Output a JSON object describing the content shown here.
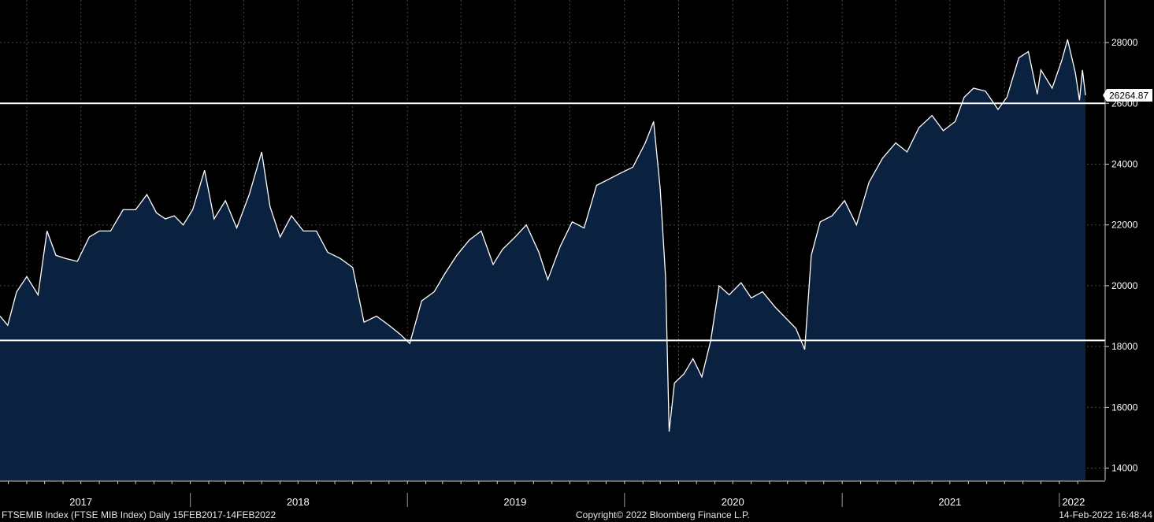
{
  "footer": {
    "left": "FTSEMIB Index (FTSE MIB Index)  Daily 15FEB2017-14FEB2022",
    "center": "Copyright© 2022 Bloomberg Finance L.P.",
    "right": "14-Feb-2022 16:48:44"
  },
  "colors": {
    "background": "#000000",
    "area_fill": "#0b2140",
    "line": "#ffffff",
    "grid": "#4a4a4a",
    "label_box": "#ffffff"
  },
  "chart_data": {
    "type": "area",
    "grid": true,
    "ylim": [
      13600,
      29400
    ],
    "y_ticks": [
      14000,
      16000,
      18000,
      20000,
      22000,
      24000,
      26000,
      28000
    ],
    "x_range": [
      "2017-02-15",
      "2022-02-14"
    ],
    "x_year_labels": [
      {
        "label": "2017",
        "mid": "2017-07-01"
      },
      {
        "label": "2018",
        "mid": "2018-07-01"
      },
      {
        "label": "2019",
        "mid": "2019-07-01"
      },
      {
        "label": "2020",
        "mid": "2020-07-01"
      },
      {
        "label": "2021",
        "mid": "2021-07-01"
      },
      {
        "label": "2022",
        "mid": "2022-01-25"
      }
    ],
    "x_year_boundaries": [
      "2018-01-01",
      "2019-01-01",
      "2020-01-01",
      "2021-01-01",
      "2022-01-01"
    ],
    "horizontal_lines": [
      26000,
      18200
    ],
    "last_value_label": "26264.87",
    "series": [
      {
        "dates": [
          "2017-02-15",
          "2017-02-28",
          "2017-03-15",
          "2017-04-01",
          "2017-04-20",
          "2017-05-05",
          "2017-05-20",
          "2017-06-05",
          "2017-06-25",
          "2017-07-15",
          "2017-08-01",
          "2017-08-20",
          "2017-09-10",
          "2017-10-01",
          "2017-10-20",
          "2017-11-05",
          "2017-11-20",
          "2017-12-05",
          "2017-12-20",
          "2018-01-05",
          "2018-01-25",
          "2018-02-10",
          "2018-03-01",
          "2018-03-20",
          "2018-04-10",
          "2018-05-01",
          "2018-05-15",
          "2018-06-01",
          "2018-06-20",
          "2018-07-10",
          "2018-08-01",
          "2018-08-20",
          "2018-09-10",
          "2018-10-01",
          "2018-10-20",
          "2018-11-10",
          "2018-12-01",
          "2018-12-20",
          "2019-01-05",
          "2019-01-25",
          "2019-02-15",
          "2019-03-05",
          "2019-03-25",
          "2019-04-15",
          "2019-05-05",
          "2019-05-25",
          "2019-06-10",
          "2019-07-01",
          "2019-07-20",
          "2019-08-10",
          "2019-08-25",
          "2019-09-15",
          "2019-10-05",
          "2019-10-25",
          "2019-11-15",
          "2019-12-05",
          "2019-12-25",
          "2020-01-15",
          "2020-02-05",
          "2020-02-19",
          "2020-03-01",
          "2020-03-10",
          "2020-03-16",
          "2020-03-25",
          "2020-04-10",
          "2020-04-25",
          "2020-05-10",
          "2020-05-25",
          "2020-06-08",
          "2020-06-25",
          "2020-07-15",
          "2020-08-01",
          "2020-08-20",
          "2020-09-10",
          "2020-09-30",
          "2020-10-15",
          "2020-10-30",
          "2020-11-10",
          "2020-11-25",
          "2020-12-15",
          "2021-01-05",
          "2021-01-25",
          "2021-02-15",
          "2021-03-10",
          "2021-04-01",
          "2021-04-20",
          "2021-05-10",
          "2021-06-01",
          "2021-06-20",
          "2021-07-10",
          "2021-07-25",
          "2021-08-10",
          "2021-08-30",
          "2021-09-20",
          "2021-10-05",
          "2021-10-25",
          "2021-11-10",
          "2021-11-25",
          "2021-12-01",
          "2021-12-20",
          "2022-01-05",
          "2022-01-15",
          "2022-01-28",
          "2022-02-04",
          "2022-02-09",
          "2022-02-14"
        ],
        "values": [
          19000,
          18700,
          19800,
          20300,
          19700,
          21800,
          21000,
          20900,
          20800,
          21600,
          21800,
          21800,
          22500,
          22500,
          23000,
          22400,
          22200,
          22300,
          22000,
          22500,
          23800,
          22200,
          22800,
          21900,
          23000,
          24400,
          22600,
          21600,
          22300,
          21800,
          21800,
          21100,
          20900,
          20600,
          18800,
          19000,
          18700,
          18400,
          18100,
          19500,
          19800,
          20400,
          21000,
          21500,
          21800,
          20700,
          21200,
          21600,
          22000,
          21100,
          20200,
          21300,
          22100,
          21900,
          23300,
          23500,
          23700,
          23900,
          24700,
          25400,
          23200,
          20300,
          15200,
          16800,
          17100,
          17600,
          17000,
          18200,
          20000,
          19700,
          20100,
          19600,
          19800,
          19300,
          18900,
          18600,
          17900,
          21000,
          22100,
          22300,
          22800,
          22000,
          23400,
          24200,
          24700,
          24400,
          25200,
          25600,
          25100,
          25400,
          26200,
          26500,
          26400,
          25800,
          26200,
          27500,
          27700,
          26300,
          27100,
          26500,
          27400,
          28100,
          27000,
          26100,
          27100,
          26264.87
        ]
      }
    ]
  }
}
